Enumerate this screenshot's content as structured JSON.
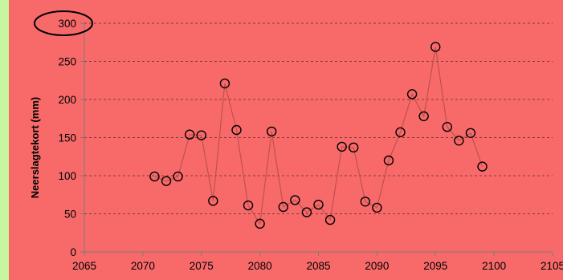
{
  "chart_data": {
    "type": "scatter",
    "xlabel": "",
    "ylabel": "Neerslagtekort (mm)",
    "xlim": [
      2065,
      2105
    ],
    "ylim": [
      0,
      300
    ],
    "xticks": [
      2065,
      2070,
      2075,
      2080,
      2085,
      2090,
      2095,
      2100,
      2105
    ],
    "yticks": [
      0,
      50,
      100,
      150,
      200,
      250,
      300
    ],
    "grid": "horizontal dashed",
    "highlighted_tick": 300,
    "series": [
      {
        "x": [
          2071,
          2072,
          2073,
          2074,
          2075,
          2076,
          2077,
          2078,
          2079,
          2080,
          2081,
          2082,
          2083,
          2084,
          2085,
          2086,
          2087,
          2088,
          2089,
          2090,
          2091,
          2092,
          2093,
          2094,
          2095,
          2096,
          2097,
          2098,
          2099
        ],
        "y": [
          99,
          93,
          99,
          154,
          153,
          67,
          221,
          160,
          61,
          37,
          158,
          59,
          68,
          52,
          62,
          42,
          138,
          137,
          66,
          58,
          120,
          157,
          207,
          178,
          269,
          164,
          146,
          156,
          112
        ]
      }
    ],
    "colors": {
      "background": "#f86a6a",
      "left_strip": "#c8f5a0",
      "line": "#c0504d",
      "marker": "#000000",
      "highlight": "#000000"
    }
  }
}
